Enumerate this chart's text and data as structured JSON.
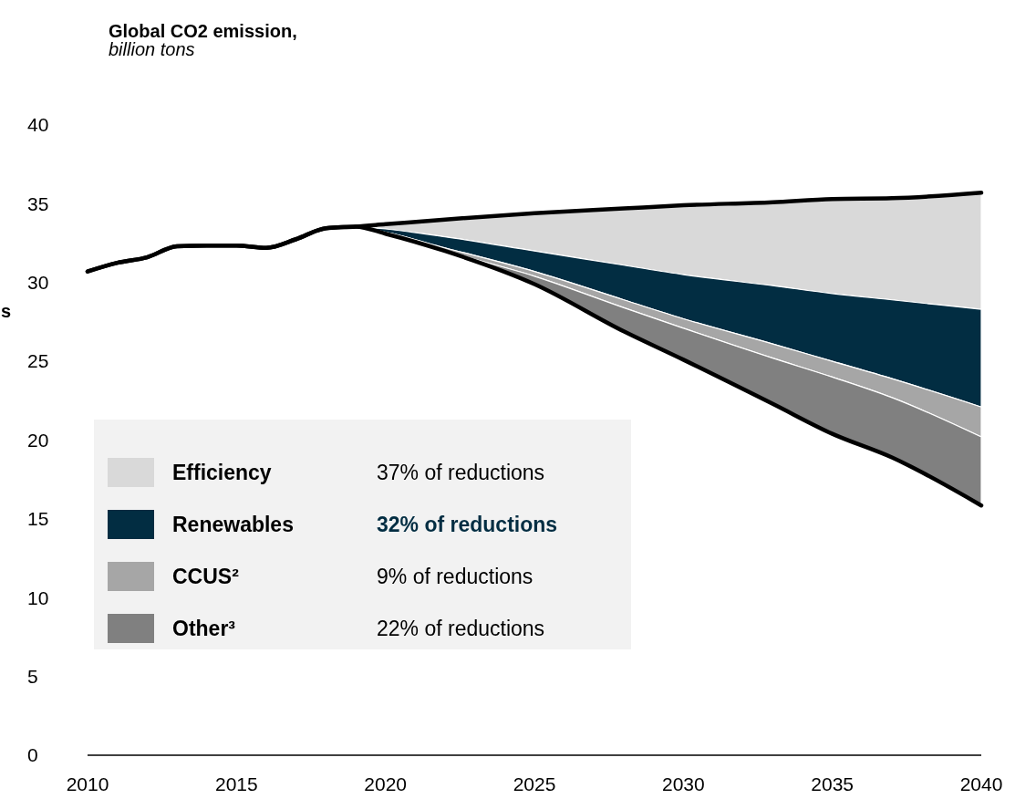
{
  "chart_data": {
    "type": "area",
    "title": "Global CO2 emission,",
    "subtitle": "billion tons",
    "xlim": [
      2010,
      2040
    ],
    "xticks": [
      2010,
      2015,
      2020,
      2025,
      2030,
      2035,
      2040
    ],
    "ylim": [
      0,
      40
    ],
    "yticks": [
      0,
      5,
      10,
      15,
      20,
      25,
      30,
      35,
      40
    ],
    "grid": false,
    "legend": "bottom left",
    "series": [
      {
        "type": "line",
        "color": "#000000",
        "x": [
          2010,
          2011,
          2012,
          2013,
          2014,
          2015,
          2016,
          2017,
          2018,
          2019,
          2020,
          2022,
          2025,
          2028,
          2030,
          2033,
          2035,
          2037,
          2040
        ],
        "values": [
          30.7,
          31.25,
          31.6,
          32.3,
          32.35,
          32.35,
          32.2,
          32.75,
          33.45,
          33.55,
          33.7,
          34.0,
          34.4,
          34.7,
          34.9,
          35.1,
          35.3,
          35.35,
          35.7
        ]
      },
      {
        "name": "Efficiency",
        "color": "#d9d9d9",
        "x": [
          2019,
          2020,
          2022,
          2025,
          2028,
          2030,
          2033,
          2035,
          2037,
          2040
        ],
        "values": [
          33.55,
          33.7,
          34.0,
          34.4,
          34.7,
          34.9,
          35.1,
          35.3,
          35.35,
          35.7
        ]
      },
      {
        "name": "Renewables",
        "color": "#022d42",
        "x": [
          2019,
          2020,
          2022,
          2025,
          2028,
          2030,
          2033,
          2035,
          2037,
          2040
        ],
        "values": [
          33.55,
          33.4,
          32.9,
          32.0,
          31.1,
          30.5,
          29.8,
          29.3,
          28.9,
          28.3
        ]
      },
      {
        "name": "CCUS²",
        "color": "#a6a6a6",
        "x": [
          2019,
          2020,
          2022,
          2025,
          2028,
          2030,
          2033,
          2035,
          2037,
          2040
        ],
        "values": [
          33.55,
          33.2,
          32.2,
          30.7,
          28.9,
          27.7,
          26.1,
          25.0,
          23.9,
          22.1
        ]
      },
      {
        "name": "Other³",
        "color": "#808080",
        "x": [
          2019,
          2020,
          2022,
          2025,
          2028,
          2030,
          2033,
          2035,
          2037,
          2040
        ],
        "values": [
          33.55,
          33.15,
          32.0,
          30.4,
          28.4,
          27.1,
          25.2,
          24.0,
          22.7,
          20.2
        ]
      },
      {
        "type": "line",
        "color": "#000000",
        "x": [
          2010,
          2011,
          2012,
          2013,
          2014,
          2015,
          2016,
          2017,
          2018,
          2019,
          2020,
          2022,
          2025,
          2028,
          2030,
          2033,
          2035,
          2037,
          2040
        ],
        "values": [
          30.7,
          31.25,
          31.6,
          32.3,
          32.35,
          32.35,
          32.2,
          32.75,
          33.45,
          33.55,
          33.1,
          32.0,
          29.9,
          26.9,
          25.1,
          22.3,
          20.4,
          18.9,
          15.85
        ]
      }
    ],
    "annotations": [
      "37% of reductions",
      "32% of reductions",
      "9% of reductions",
      "22% of reductions",
      "s"
    ]
  }
}
